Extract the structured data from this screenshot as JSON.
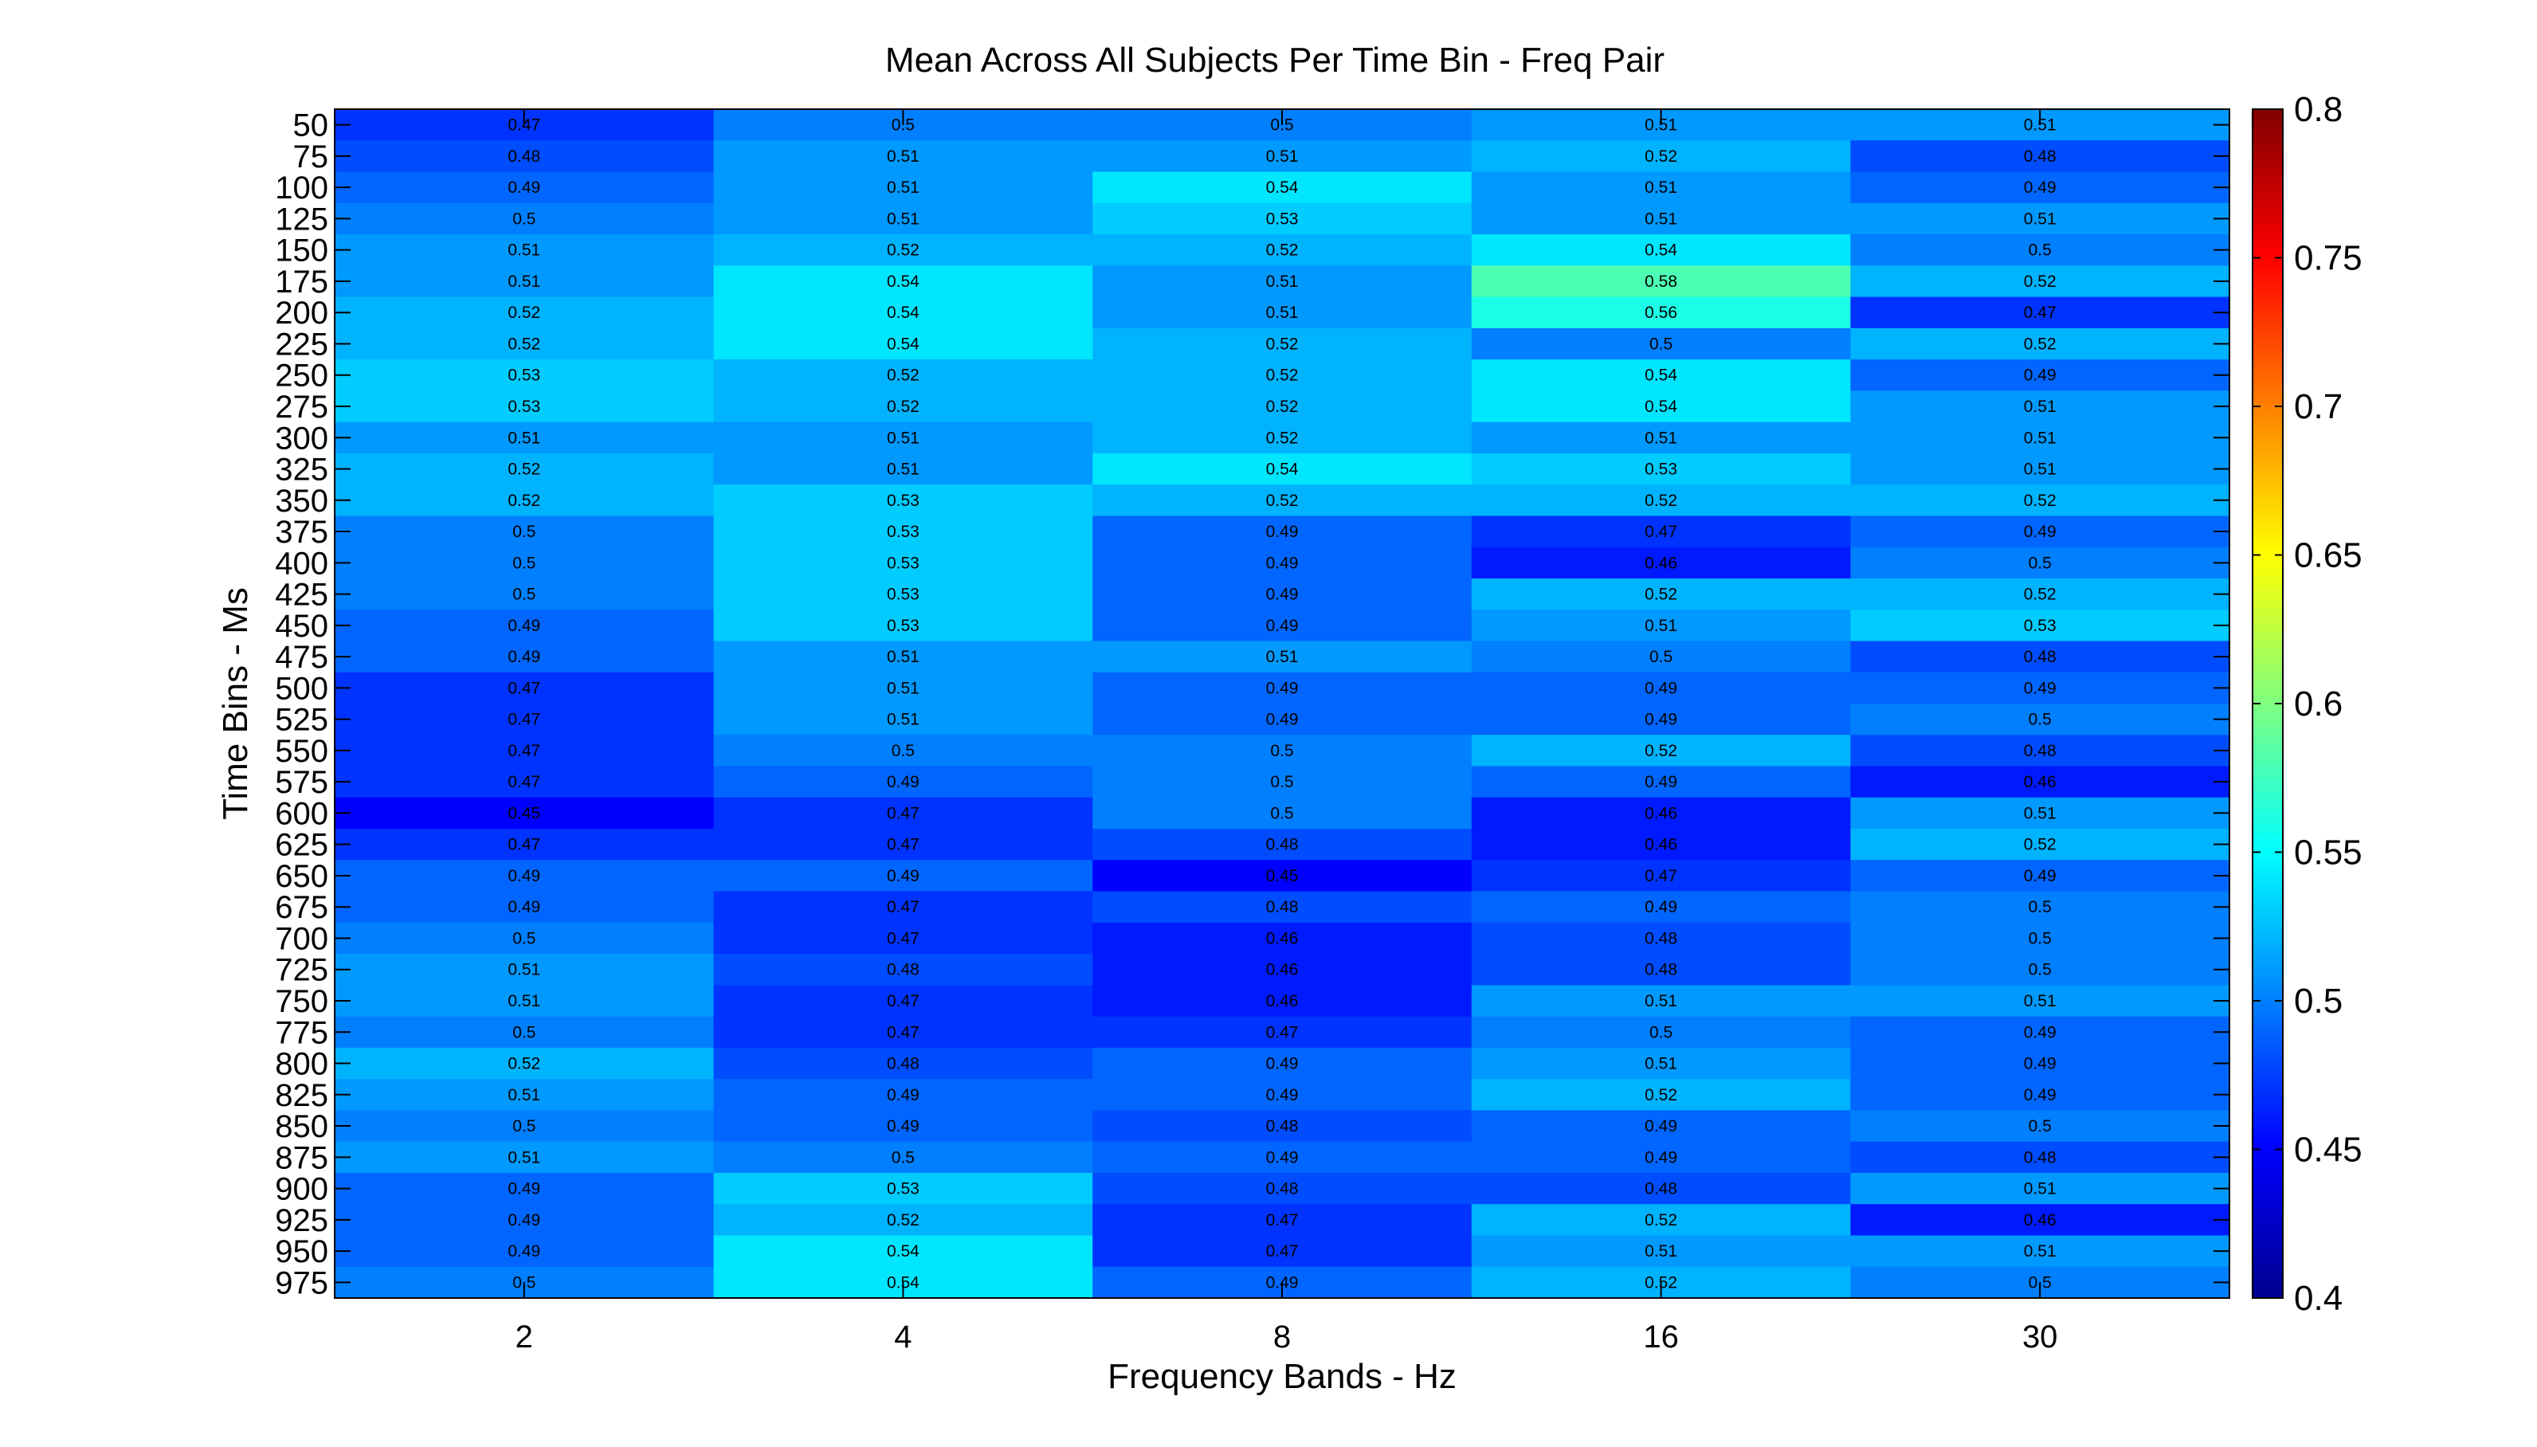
{
  "chart_data": {
    "type": "heatmap",
    "title": "Mean Across All Subjects Per Time Bin - Freq Pair",
    "xlabel": "Frequency Bands - Hz",
    "ylabel": "Time Bins - Ms",
    "x_categories": [
      "2",
      "4",
      "8",
      "16",
      "30"
    ],
    "y_categories": [
      "50",
      "75",
      "100",
      "125",
      "150",
      "175",
      "200",
      "225",
      "250",
      "275",
      "300",
      "325",
      "350",
      "375",
      "400",
      "425",
      "450",
      "475",
      "500",
      "525",
      "550",
      "575",
      "600",
      "625",
      "650",
      "675",
      "700",
      "725",
      "750",
      "775",
      "800",
      "825",
      "850",
      "875",
      "900",
      "925",
      "950",
      "975"
    ],
    "values": [
      [
        0.47,
        0.5,
        0.5,
        0.51,
        0.51
      ],
      [
        0.48,
        0.51,
        0.51,
        0.52,
        0.48
      ],
      [
        0.49,
        0.51,
        0.54,
        0.51,
        0.49
      ],
      [
        0.5,
        0.51,
        0.53,
        0.51,
        0.51
      ],
      [
        0.51,
        0.52,
        0.52,
        0.54,
        0.5
      ],
      [
        0.51,
        0.54,
        0.51,
        0.58,
        0.52
      ],
      [
        0.52,
        0.54,
        0.51,
        0.56,
        0.47
      ],
      [
        0.52,
        0.54,
        0.52,
        0.5,
        0.52
      ],
      [
        0.53,
        0.52,
        0.52,
        0.54,
        0.49
      ],
      [
        0.53,
        0.52,
        0.52,
        0.54,
        0.51
      ],
      [
        0.51,
        0.51,
        0.52,
        0.51,
        0.51
      ],
      [
        0.52,
        0.51,
        0.54,
        0.53,
        0.51
      ],
      [
        0.52,
        0.53,
        0.52,
        0.52,
        0.52
      ],
      [
        0.5,
        0.53,
        0.49,
        0.47,
        0.49
      ],
      [
        0.5,
        0.53,
        0.49,
        0.46,
        0.5
      ],
      [
        0.5,
        0.53,
        0.49,
        0.52,
        0.52
      ],
      [
        0.49,
        0.53,
        0.49,
        0.51,
        0.53
      ],
      [
        0.49,
        0.51,
        0.51,
        0.5,
        0.48
      ],
      [
        0.47,
        0.51,
        0.49,
        0.49,
        0.49
      ],
      [
        0.47,
        0.51,
        0.49,
        0.49,
        0.5
      ],
      [
        0.47,
        0.5,
        0.5,
        0.52,
        0.48
      ],
      [
        0.47,
        0.49,
        0.5,
        0.49,
        0.46
      ],
      [
        0.45,
        0.47,
        0.5,
        0.46,
        0.51
      ],
      [
        0.47,
        0.47,
        0.48,
        0.46,
        0.52
      ],
      [
        0.49,
        0.49,
        0.45,
        0.47,
        0.49
      ],
      [
        0.49,
        0.47,
        0.48,
        0.49,
        0.5
      ],
      [
        0.5,
        0.47,
        0.46,
        0.48,
        0.5
      ],
      [
        0.51,
        0.48,
        0.46,
        0.48,
        0.5
      ],
      [
        0.51,
        0.47,
        0.46,
        0.51,
        0.51
      ],
      [
        0.5,
        0.47,
        0.47,
        0.5,
        0.49
      ],
      [
        0.52,
        0.48,
        0.49,
        0.51,
        0.49
      ],
      [
        0.51,
        0.49,
        0.49,
        0.52,
        0.49
      ],
      [
        0.5,
        0.49,
        0.48,
        0.49,
        0.5
      ],
      [
        0.51,
        0.5,
        0.49,
        0.49,
        0.48
      ],
      [
        0.49,
        0.53,
        0.48,
        0.48,
        0.51
      ],
      [
        0.49,
        0.52,
        0.47,
        0.52,
        0.46
      ],
      [
        0.49,
        0.54,
        0.47,
        0.51,
        0.51
      ],
      [
        0.5,
        0.54,
        0.49,
        0.52,
        0.5
      ]
    ],
    "colorbar": {
      "range": [
        0.4,
        0.8
      ],
      "ticks": [
        "0.4",
        "0.45",
        "0.5",
        "0.55",
        "0.6",
        "0.65",
        "0.7",
        "0.75",
        "0.8"
      ],
      "colormap": "jet"
    },
    "legend": "colorbar-right",
    "grid": false
  }
}
